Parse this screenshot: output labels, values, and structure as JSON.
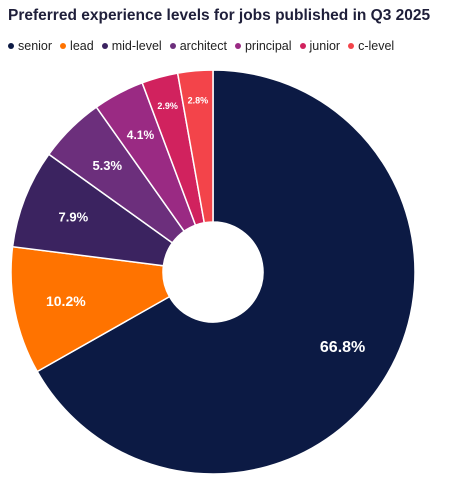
{
  "chart_data": {
    "type": "pie",
    "title": "Preferred experience levels for jobs published in Q3 2025",
    "legend_position": "top-left",
    "slices": [
      {
        "name": "senior",
        "value": 66.8,
        "label": "66.8%",
        "color": "#0c1a44"
      },
      {
        "name": "lead",
        "value": 10.2,
        "label": "10.2%",
        "color": "#ff7300"
      },
      {
        "name": "mid-level",
        "value": 7.9,
        "label": "7.9%",
        "color": "#3b2360"
      },
      {
        "name": "architect",
        "value": 5.3,
        "label": "5.3%",
        "color": "#6c2f7c"
      },
      {
        "name": "principal",
        "value": 4.1,
        "label": "4.1%",
        "color": "#9a2a83"
      },
      {
        "name": "junior",
        "value": 2.9,
        "label": "2.9%",
        "color": "#d1225e"
      },
      {
        "name": "c-level",
        "value": 2.8,
        "label": "2.8%",
        "color": "#f3444a"
      }
    ]
  }
}
